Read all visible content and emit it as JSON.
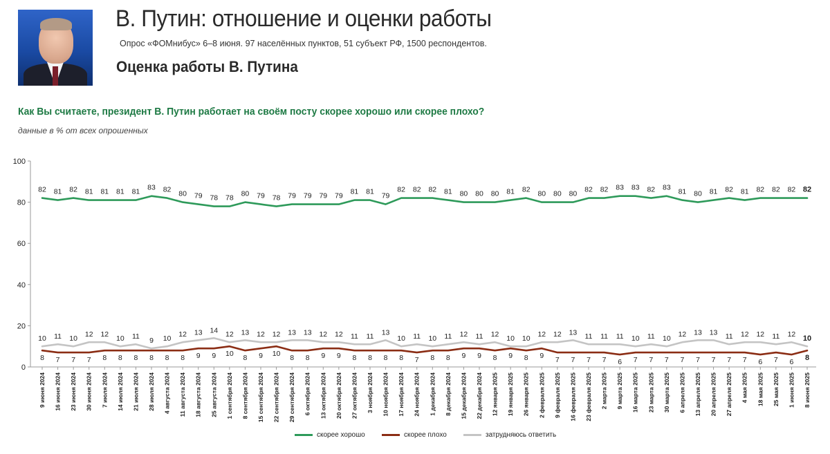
{
  "header": {
    "title": "В. Путин: отношение и оценки работы",
    "subtitle": "Опрос «ФОМнибус» 6–8 июня. 97 населённых пунктов, 51 субъект РФ, 1500 респондентов.",
    "section": "Оценка работы В. Путина"
  },
  "question": "Как Вы считаете, президент В. Путин работает на своём посту скорее хорошо или скорее плохо?",
  "note": "данные в % от всех опрошенных",
  "colors": {
    "good": "#2e9a5a",
    "bad": "#8b2d14",
    "hard": "#c4c4c4",
    "question": "#1e7a44"
  },
  "chart_data": {
    "type": "line",
    "ylim": [
      0,
      100
    ],
    "yticks": [
      0,
      20,
      40,
      60,
      80,
      100
    ],
    "grid": false,
    "legend_position": "bottom",
    "x": [
      "9 июня 2024",
      "16 июня 2024",
      "23 июня 2024",
      "30 июня 2024",
      "7 июля 2024",
      "14 июля 2024",
      "21 июля 2024",
      "28 июля 2024",
      "4 августа 2024",
      "11 августа 2024",
      "18 августа 2024",
      "25 августа 2024",
      "1 сентября 2024",
      "8 сентября 2024",
      "15 сентября 2024",
      "22 сентября 2024",
      "29 сентября 2024",
      "6 октября 2024",
      "13 октября 2024",
      "20 октября 2024",
      "27 октября 2024",
      "3 ноября 2024",
      "10 ноября 2024",
      "17 ноября 2024",
      "24 ноября 2024",
      "1 декабря 2024",
      "8 декабря 2024",
      "15 декабря 2024",
      "22 декабря 2024",
      "12 января 2025",
      "19 января 2025",
      "26 января 2025",
      "2 февраля 2025",
      "9 февраля 2025",
      "16 февраля 2025",
      "23 февраля 2025",
      "2 марта 2025",
      "9 марта 2025",
      "16 марта 2025",
      "23 марта 2025",
      "30 марта 2025",
      "6 апреля 2025",
      "13 апреля 2025",
      "20 апреля 2025",
      "27 апреля 2025",
      "4 мая 2025",
      "18 мая 2025",
      "25 мая 2025",
      "1 июня 2025",
      "8 июня 2025"
    ],
    "series": [
      {
        "name": "скорее хорошо",
        "values": [
          82,
          81,
          82,
          81,
          81,
          81,
          81,
          83,
          82,
          80,
          79,
          78,
          78,
          80,
          79,
          78,
          79,
          79,
          79,
          79,
          81,
          81,
          79,
          82,
          82,
          82,
          81,
          80,
          80,
          80,
          81,
          82,
          80,
          80,
          80,
          82,
          82,
          83,
          83,
          82,
          83,
          81,
          80,
          81,
          82,
          81,
          82,
          82,
          82,
          82
        ]
      },
      {
        "name": "скорее плохо",
        "values": [
          8,
          7,
          7,
          7,
          8,
          8,
          8,
          8,
          8,
          8,
          9,
          9,
          10,
          8,
          9,
          10,
          8,
          8,
          9,
          9,
          8,
          8,
          8,
          8,
          7,
          8,
          8,
          9,
          9,
          8,
          9,
          8,
          9,
          7,
          7,
          7,
          7,
          6,
          7,
          7,
          7,
          7,
          7,
          7,
          7,
          7,
          6,
          7,
          6,
          8
        ]
      },
      {
        "name": "затрудняюсь ответить",
        "values": [
          10,
          11,
          10,
          12,
          12,
          10,
          11,
          9,
          10,
          12,
          13,
          14,
          12,
          13,
          12,
          12,
          13,
          13,
          12,
          12,
          11,
          11,
          13,
          10,
          11,
          10,
          11,
          12,
          11,
          12,
          10,
          10,
          12,
          12,
          13,
          11,
          11,
          11,
          10,
          11,
          10,
          12,
          13,
          13,
          11,
          12,
          12,
          11,
          12,
          10
        ]
      }
    ]
  }
}
